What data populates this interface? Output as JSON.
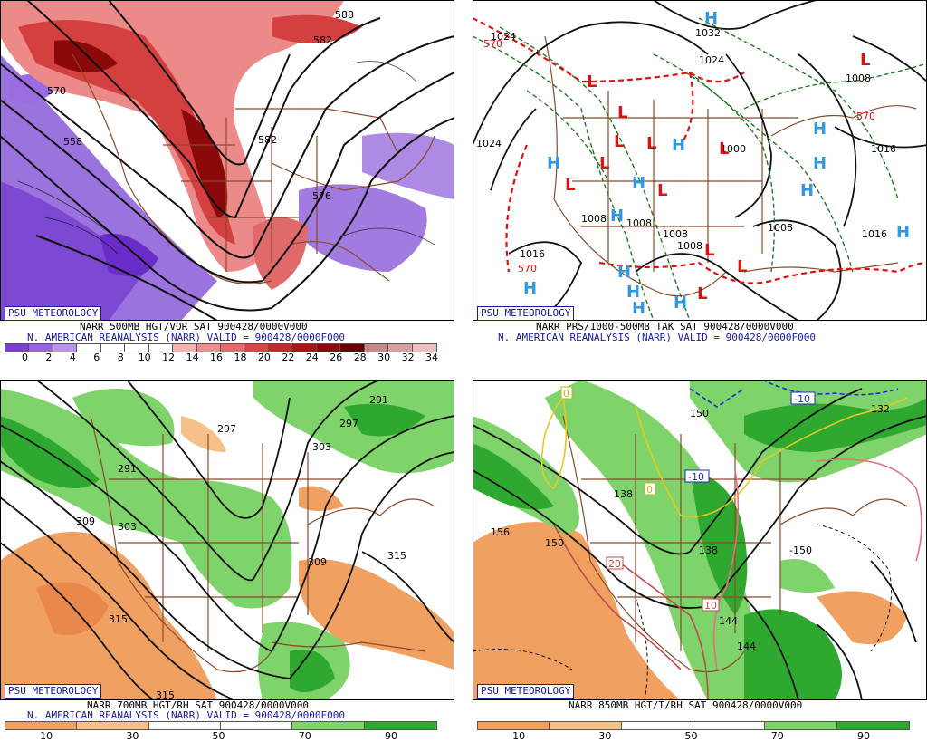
{
  "panels": [
    {
      "id": "p1",
      "badge": "PSU METEOROLOGY",
      "caption1": "NARR 500MB HGT/VOR SAT 900428/0000V000",
      "caption2": "N. AMERICAN REANALYSIS (NARR) VALID = 900428/0000F000",
      "contour_labels": [
        "570",
        "582",
        "588",
        "558",
        "576",
        "582"
      ],
      "scale_ticks": [
        "0",
        "2",
        "4",
        "6",
        "8",
        "10",
        "12",
        "14",
        "16",
        "18",
        "20",
        "22",
        "24",
        "26",
        "28",
        "30",
        "32",
        "34"
      ],
      "scale_colors": [
        "#7a3fd0",
        "#9a63dc",
        "#b894ea",
        "#ffffff",
        "#ffffff",
        "#ffffff",
        "#ffffff",
        "#f4b3b3",
        "#ee8f8f",
        "#e66a6a",
        "#d94646",
        "#c52a2a",
        "#a81515",
        "#8a0a0a",
        "#6a0000",
        "#c48a8a",
        "#d8a0a0",
        "#eac0c0"
      ]
    },
    {
      "id": "p2",
      "badge": "PSU METEOROLOGY",
      "caption1": "NARR PRS/1000-500MB TAK SAT 900428/0000V000",
      "caption2": "N. AMERICAN REANALYSIS (NARR) VALID = 900428/0000F000",
      "contour_labels": [
        "1024",
        "1032",
        "1024",
        "1008",
        "1016",
        "1024",
        "1008",
        "1008",
        "1008",
        "1008",
        "1008",
        "1016",
        "1016",
        "1000",
        "570",
        "570",
        "570"
      ],
      "highs": 14,
      "lows": 14
    },
    {
      "id": "p3",
      "badge": "PSU METEOROLOGY",
      "caption1": "NARR 700MB HGT/RH SAT 900428/0000V000",
      "caption2": "N. AMERICAN REANALYSIS (NARR) VALID = 900428/0000F000",
      "contour_labels": [
        "291",
        "297",
        "291",
        "297",
        "303",
        "309",
        "303",
        "309",
        "315",
        "315",
        "315"
      ],
      "scale_ticks": [
        "10",
        "30",
        "50",
        "70",
        "90"
      ],
      "scale_colors": [
        "#f0a060",
        "#f6c08a",
        "#ffffff",
        "#ffffff",
        "#7ed36a",
        "#2fa82f"
      ]
    },
    {
      "id": "p4",
      "badge": "PSU METEOROLOGY",
      "caption1": "NARR 850MB HGT/T/RH SAT 900428/0000V000",
      "caption2": "",
      "contour_labels": [
        "150",
        "-10",
        "-10",
        "0",
        "0",
        "138",
        "156",
        "150",
        "138",
        "20",
        "10",
        "144",
        "144",
        "-150",
        "132"
      ],
      "scale_ticks": [
        "10",
        "30",
        "50",
        "70",
        "90"
      ],
      "scale_colors": [
        "#f0a060",
        "#f6c08a",
        "#ffffff",
        "#ffffff",
        "#7ed36a",
        "#2fa82f"
      ]
    }
  ]
}
